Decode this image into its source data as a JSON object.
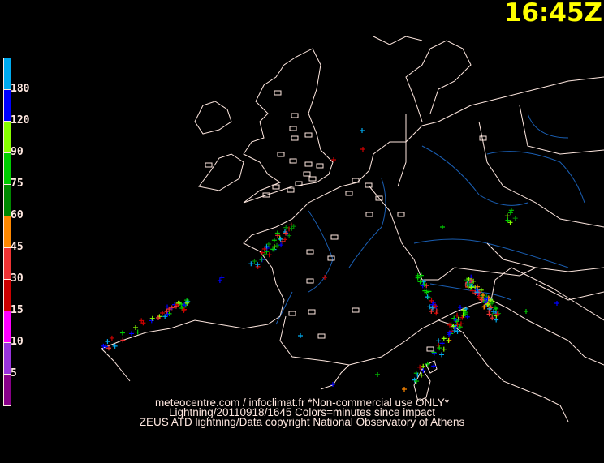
{
  "time_label": "16:45Z",
  "legend": {
    "segments": [
      {
        "color": "#00aaee"
      },
      {
        "color": "#0000ff",
        "label": "180"
      },
      {
        "color": "#88ff00",
        "label": "120"
      },
      {
        "color": "#00cc00",
        "label": "90"
      },
      {
        "color": "#008800",
        "label": "75"
      },
      {
        "color": "#ff8800",
        "label": "60"
      },
      {
        "color": "#ee3333",
        "label": "45"
      },
      {
        "color": "#cc0000",
        "label": "30"
      },
      {
        "color": "#ff00ff",
        "label": "15"
      },
      {
        "color": "#9933dd",
        "label": "10"
      },
      {
        "color": "#880088",
        "label": "5"
      }
    ]
  },
  "footer": {
    "line1": "meteocentre.com / infoclimat.fr *Non-commercial use ONLY*",
    "line2": "Lightning/20110918/1645 Colors=minutes since impact",
    "line3": "ZEUS ATD lightning/Data copyright National Observatory of Athens"
  },
  "colors": {
    "coast": "#ffe8e0",
    "rivers": "#1a5fb4",
    "time": "#ffff00"
  }
}
